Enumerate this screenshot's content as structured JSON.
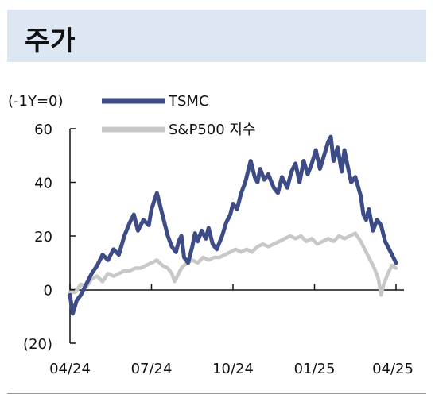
{
  "header": {
    "title": "주가"
  },
  "chart_data": {
    "type": "line",
    "unit_label": "(-1Y=0)",
    "x_tick_labels": [
      "04/24",
      "07/24",
      "10/24",
      "01/25",
      "04/25"
    ],
    "y_tick_labels": [
      "60",
      "40",
      "20",
      "0",
      "(20)"
    ],
    "ylim": [
      -20,
      60
    ],
    "y_ticks": [
      60,
      40,
      20,
      0,
      -20
    ],
    "x_month_range": [
      0,
      12
    ],
    "grid": false,
    "legend_position": "top",
    "series": [
      {
        "name": "TSMC",
        "color": "#3d4b86",
        "points": [
          [
            0.0,
            -2
          ],
          [
            0.1,
            -9
          ],
          [
            0.25,
            -4
          ],
          [
            0.4,
            -2
          ],
          [
            0.6,
            2
          ],
          [
            0.8,
            6
          ],
          [
            1.0,
            9
          ],
          [
            1.2,
            13
          ],
          [
            1.4,
            11
          ],
          [
            1.6,
            15
          ],
          [
            1.8,
            13
          ],
          [
            2.0,
            20
          ],
          [
            2.2,
            25
          ],
          [
            2.35,
            28
          ],
          [
            2.5,
            22
          ],
          [
            2.7,
            26
          ],
          [
            2.9,
            24
          ],
          [
            3.0,
            30
          ],
          [
            3.1,
            33
          ],
          [
            3.2,
            36
          ],
          [
            3.3,
            32
          ],
          [
            3.45,
            26
          ],
          [
            3.6,
            20
          ],
          [
            3.75,
            16
          ],
          [
            3.9,
            14
          ],
          [
            4.0,
            18
          ],
          [
            4.1,
            20
          ],
          [
            4.2,
            12
          ],
          [
            4.35,
            10
          ],
          [
            4.5,
            16
          ],
          [
            4.6,
            21
          ],
          [
            4.7,
            18
          ],
          [
            4.85,
            22
          ],
          [
            5.0,
            19
          ],
          [
            5.1,
            23
          ],
          [
            5.25,
            17
          ],
          [
            5.4,
            15
          ],
          [
            5.6,
            20
          ],
          [
            5.75,
            25
          ],
          [
            5.9,
            28
          ],
          [
            6.0,
            32
          ],
          [
            6.15,
            30
          ],
          [
            6.3,
            36
          ],
          [
            6.45,
            40
          ],
          [
            6.55,
            44
          ],
          [
            6.65,
            48
          ],
          [
            6.8,
            42
          ],
          [
            6.9,
            40
          ],
          [
            7.0,
            45
          ],
          [
            7.15,
            41
          ],
          [
            7.3,
            43
          ],
          [
            7.5,
            38
          ],
          [
            7.65,
            36
          ],
          [
            7.8,
            42
          ],
          [
            8.0,
            38
          ],
          [
            8.15,
            44
          ],
          [
            8.3,
            47
          ],
          [
            8.45,
            40
          ],
          [
            8.6,
            48
          ],
          [
            8.75,
            43
          ],
          [
            8.9,
            47
          ],
          [
            9.05,
            52
          ],
          [
            9.2,
            45
          ],
          [
            9.35,
            50
          ],
          [
            9.5,
            55
          ],
          [
            9.6,
            57
          ],
          [
            9.7,
            48
          ],
          [
            9.85,
            53
          ],
          [
            10.0,
            44
          ],
          [
            10.1,
            52
          ],
          [
            10.2,
            47
          ],
          [
            10.35,
            40
          ],
          [
            10.5,
            42
          ],
          [
            10.7,
            35
          ],
          [
            10.8,
            28
          ],
          [
            10.9,
            26
          ],
          [
            11.0,
            30
          ],
          [
            11.15,
            22
          ],
          [
            11.3,
            26
          ],
          [
            11.45,
            24
          ],
          [
            11.6,
            18
          ],
          [
            11.75,
            15
          ],
          [
            11.9,
            12
          ],
          [
            12.0,
            10
          ]
        ]
      },
      {
        "name": "S&P500 지수",
        "color": "#c8c8c8",
        "points": [
          [
            0.0,
            -1
          ],
          [
            0.2,
            -1
          ],
          [
            0.4,
            2
          ],
          [
            0.6,
            1
          ],
          [
            0.8,
            4
          ],
          [
            1.0,
            5
          ],
          [
            1.2,
            3
          ],
          [
            1.4,
            6
          ],
          [
            1.6,
            5
          ],
          [
            1.8,
            6
          ],
          [
            2.0,
            7
          ],
          [
            2.2,
            7
          ],
          [
            2.4,
            8
          ],
          [
            2.6,
            8
          ],
          [
            2.8,
            9
          ],
          [
            3.0,
            10
          ],
          [
            3.2,
            11
          ],
          [
            3.4,
            9
          ],
          [
            3.6,
            8
          ],
          [
            3.75,
            6
          ],
          [
            3.85,
            3
          ],
          [
            3.95,
            5
          ],
          [
            4.1,
            8
          ],
          [
            4.3,
            10
          ],
          [
            4.5,
            11
          ],
          [
            4.7,
            10
          ],
          [
            4.9,
            12
          ],
          [
            5.1,
            11
          ],
          [
            5.3,
            12
          ],
          [
            5.5,
            12
          ],
          [
            5.7,
            13
          ],
          [
            5.9,
            14
          ],
          [
            6.1,
            15
          ],
          [
            6.3,
            14
          ],
          [
            6.5,
            15
          ],
          [
            6.7,
            14
          ],
          [
            6.9,
            16
          ],
          [
            7.1,
            17
          ],
          [
            7.3,
            16
          ],
          [
            7.5,
            17
          ],
          [
            7.7,
            18
          ],
          [
            7.9,
            19
          ],
          [
            8.1,
            20
          ],
          [
            8.3,
            19
          ],
          [
            8.5,
            20
          ],
          [
            8.7,
            18
          ],
          [
            8.9,
            19
          ],
          [
            9.1,
            17
          ],
          [
            9.3,
            18
          ],
          [
            9.5,
            19
          ],
          [
            9.7,
            18
          ],
          [
            9.9,
            20
          ],
          [
            10.1,
            19
          ],
          [
            10.3,
            20
          ],
          [
            10.5,
            21
          ],
          [
            10.7,
            18
          ],
          [
            10.9,
            14
          ],
          [
            11.05,
            11
          ],
          [
            11.2,
            8
          ],
          [
            11.35,
            4
          ],
          [
            11.45,
            -2
          ],
          [
            11.55,
            2
          ],
          [
            11.7,
            6
          ],
          [
            11.85,
            9
          ],
          [
            12.0,
            8
          ]
        ]
      }
    ]
  }
}
